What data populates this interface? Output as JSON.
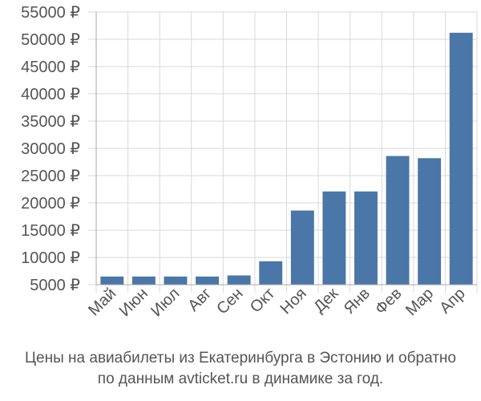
{
  "chart_data": {
    "type": "bar",
    "categories": [
      "Май",
      "Июн",
      "Июл",
      "Авг",
      "Сен",
      "Окт",
      "Ноя",
      "Дек",
      "Янв",
      "Фев",
      "Мар",
      "Апр"
    ],
    "values": [
      6500,
      6500,
      6500,
      6500,
      6700,
      9300,
      18600,
      22100,
      22100,
      28600,
      28200,
      51200
    ],
    "ylim": [
      5000,
      55000
    ],
    "yticks": [
      5000,
      10000,
      15000,
      20000,
      25000,
      30000,
      35000,
      40000,
      45000,
      50000,
      55000
    ],
    "ytick_suffix": " ₽",
    "grid": true,
    "bar_color": "#4a76a8",
    "grid_color": "#d9d9d9",
    "caption_line1": "Цены на авиабилеты из Екатеринбурга в Эстонию и обратно",
    "caption_line2": "по данным avticket.ru в динамике за год."
  }
}
